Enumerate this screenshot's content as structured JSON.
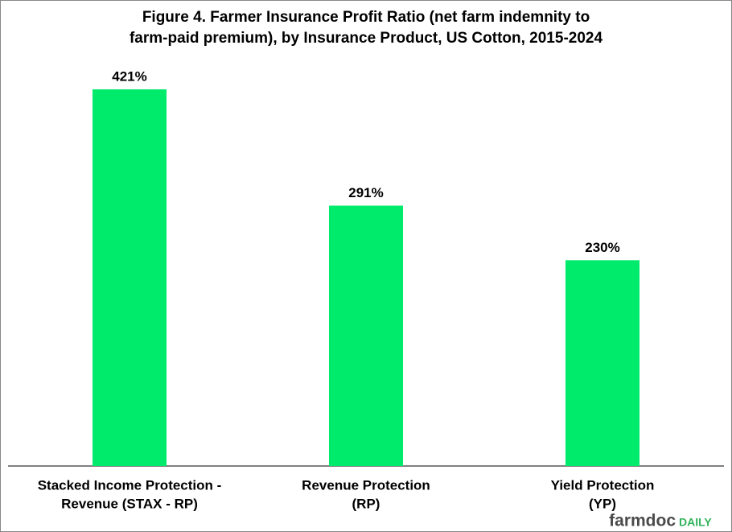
{
  "chart_data": {
    "type": "bar",
    "title": [
      "Figure 4.  Farmer Insurance Profit Ratio (net farm indemnity to",
      "farm-paid premium), by Insurance Product, US Cotton, 2015-2024"
    ],
    "categories": [
      [
        "Stacked Income Protection -",
        "Revenue (STAX - RP)"
      ],
      [
        "Revenue Protection",
        "(RP)"
      ],
      [
        "Yield Protection",
        "(YP)"
      ]
    ],
    "values": [
      421,
      291,
      230
    ],
    "value_labels": [
      "421%",
      "291%",
      "230%"
    ],
    "color": "#00ea6b",
    "logo": [
      "farmdoc",
      "DAILY"
    ]
  }
}
